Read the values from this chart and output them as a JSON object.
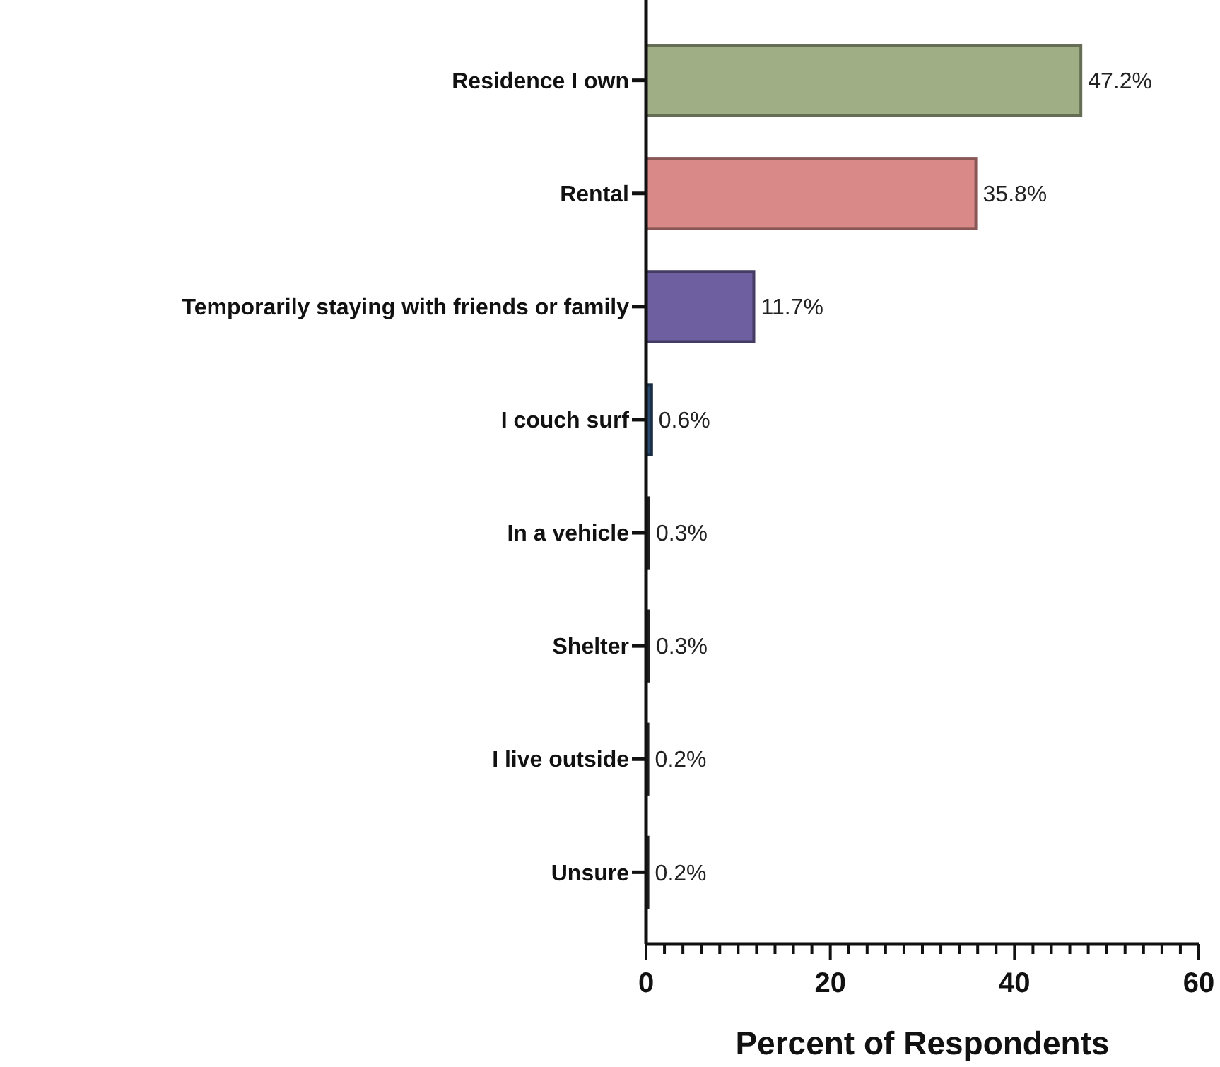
{
  "chart_data": {
    "type": "bar",
    "orientation": "horizontal",
    "xlabel": "Percent of Respondents",
    "categories": [
      "Residence I own",
      "Rental",
      "Temporarily staying with friends or family",
      "I couch surf",
      "In a vehicle",
      "Shelter",
      "I live outside",
      "Unsure"
    ],
    "values": [
      47.2,
      35.8,
      11.7,
      0.6,
      0.3,
      0.3,
      0.2,
      0.2
    ],
    "value_labels": [
      "47.2%",
      "35.8%",
      "11.7%",
      "0.6%",
      "0.3%",
      "0.3%",
      "0.2%",
      "0.2%"
    ],
    "colors": [
      "#a0ae86",
      "#d98a88",
      "#6e5fa0",
      "#2a4a6e",
      "#333333",
      "#333333",
      "#333333",
      "#333333"
    ],
    "xlim": [
      0,
      60
    ],
    "xticks": [
      0,
      {
        "value": 2,
        "label": null
      },
      {
        "value": 4,
        "label": null
      },
      {
        "value": 6,
        "label": null
      },
      {
        "value": 8,
        "label": null
      },
      {
        "value": 10,
        "label": null
      },
      {
        "value": 12,
        "label": null
      },
      {
        "value": 14,
        "label": null
      },
      {
        "value": 16,
        "label": null
      },
      {
        "value": 18,
        "label": null
      },
      20,
      {
        "value": 22,
        "label": null
      },
      {
        "value": 24,
        "label": null
      },
      {
        "value": 26,
        "label": null
      },
      {
        "value": 28,
        "label": null
      },
      {
        "value": 30,
        "label": null
      },
      {
        "value": 32,
        "label": null
      },
      {
        "value": 34,
        "label": null
      },
      {
        "value": 36,
        "label": null
      },
      {
        "value": 38,
        "label": null
      },
      40,
      {
        "value": 42,
        "label": null
      },
      {
        "value": 44,
        "label": null
      },
      {
        "value": 46,
        "label": null
      },
      {
        "value": 48,
        "label": null
      },
      {
        "value": 50,
        "label": null
      },
      {
        "value": 52,
        "label": null
      },
      {
        "value": 54,
        "label": null
      },
      {
        "value": 56,
        "label": null
      },
      {
        "value": 58,
        "label": null
      },
      60
    ],
    "grid": false
  }
}
